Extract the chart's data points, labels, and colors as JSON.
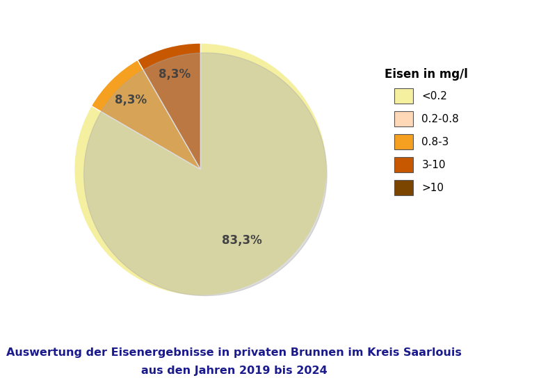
{
  "slices": [
    83.3,
    8.3,
    8.3
  ],
  "pie_colors": [
    "#F5F0A0",
    "#F5A020",
    "#C85800"
  ],
  "label_pcts": [
    "83,3%",
    "8,3%",
    "8,3%"
  ],
  "legend_labels": [
    "<0.2",
    "0.2-0.8",
    "0.8-3",
    "3-10",
    ">10"
  ],
  "legend_title": "Eisen in mg/l",
  "legend_colors": [
    "#F5F0A0",
    "#FFD8B8",
    "#F5A020",
    "#C85800",
    "#7B4500"
  ],
  "title_line1": "Auswertung der Eisenergebnisse in privaten Brunnen im Kreis Saarlouis",
  "title_line2": "aus den Jahren 2019 bis 2024",
  "title_color": "#1A1A8C",
  "bg_color": "#FFFFFF",
  "startangle": 90
}
